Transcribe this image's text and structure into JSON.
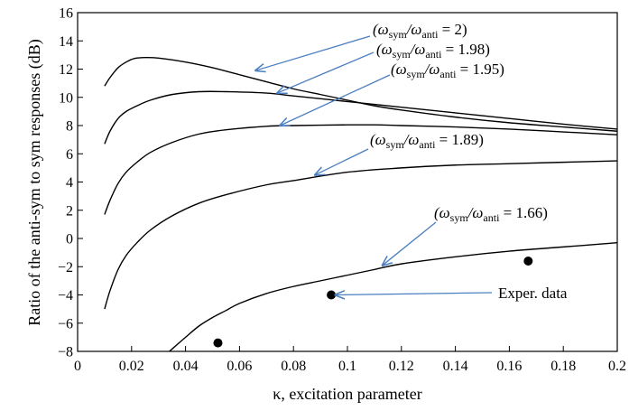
{
  "chart_data": {
    "type": "line",
    "title": "",
    "xlabel": "κ, excitation parameter",
    "ylabel": "Ratio of the anti-sym to sym responses (dB)",
    "xlim": [
      0,
      0.2
    ],
    "ylim": [
      -8,
      16
    ],
    "x_ticks": [
      "0",
      "0.02",
      "0.04",
      "0.06",
      "0.08",
      "0.1",
      "0.12",
      "0.14",
      "0.16",
      "0.18",
      "0.2"
    ],
    "y_ticks": [
      "16",
      "14",
      "12",
      "10",
      "8",
      "6",
      "4",
      "2",
      "0",
      "−2",
      "−4",
      "−6",
      "−8"
    ],
    "grid": false,
    "legend": "none",
    "series": [
      {
        "name": "(ωsym/ωanti = 2)",
        "color": "#000000",
        "points": [
          [
            0.01,
            10.8
          ],
          [
            0.012,
            11.4
          ],
          [
            0.015,
            12.1
          ],
          [
            0.018,
            12.5
          ],
          [
            0.021,
            12.75
          ],
          [
            0.025,
            12.82
          ],
          [
            0.03,
            12.78
          ],
          [
            0.04,
            12.5
          ],
          [
            0.05,
            12.1
          ],
          [
            0.06,
            11.6
          ],
          [
            0.07,
            11.1
          ],
          [
            0.08,
            10.6
          ],
          [
            0.09,
            10.2
          ],
          [
            0.1,
            9.8
          ],
          [
            0.11,
            9.4
          ],
          [
            0.12,
            9.1
          ],
          [
            0.14,
            8.6
          ],
          [
            0.16,
            8.2
          ],
          [
            0.18,
            7.9
          ],
          [
            0.2,
            7.6
          ]
        ]
      },
      {
        "name": "(ωsym/ωanti = 1.98)",
        "color": "#000000",
        "points": [
          [
            0.01,
            6.7
          ],
          [
            0.012,
            7.6
          ],
          [
            0.015,
            8.5
          ],
          [
            0.018,
            9.0
          ],
          [
            0.022,
            9.4
          ],
          [
            0.027,
            9.8
          ],
          [
            0.035,
            10.2
          ],
          [
            0.045,
            10.4
          ],
          [
            0.055,
            10.4
          ],
          [
            0.07,
            10.3
          ],
          [
            0.08,
            10.1
          ],
          [
            0.1,
            9.7
          ],
          [
            0.12,
            9.3
          ],
          [
            0.14,
            8.9
          ],
          [
            0.16,
            8.5
          ],
          [
            0.18,
            8.1
          ],
          [
            0.2,
            7.75
          ]
        ]
      },
      {
        "name": "(ωsym/ωanti = 1.95)",
        "color": "#000000",
        "points": [
          [
            0.01,
            1.7
          ],
          [
            0.012,
            2.7
          ],
          [
            0.015,
            3.9
          ],
          [
            0.018,
            4.7
          ],
          [
            0.022,
            5.4
          ],
          [
            0.027,
            6.1
          ],
          [
            0.035,
            6.8
          ],
          [
            0.045,
            7.4
          ],
          [
            0.055,
            7.7
          ],
          [
            0.07,
            7.95
          ],
          [
            0.08,
            8.0
          ],
          [
            0.1,
            8.05
          ],
          [
            0.11,
            8.05
          ],
          [
            0.12,
            8.0
          ],
          [
            0.14,
            7.9
          ],
          [
            0.16,
            7.75
          ],
          [
            0.18,
            7.55
          ],
          [
            0.2,
            7.35
          ]
        ]
      },
      {
        "name": "(ωsym/ωanti = 1.89)",
        "color": "#000000",
        "points": [
          [
            0.01,
            -5.0
          ],
          [
            0.012,
            -3.7
          ],
          [
            0.015,
            -2.2
          ],
          [
            0.018,
            -1.2
          ],
          [
            0.022,
            -0.3
          ],
          [
            0.027,
            0.6
          ],
          [
            0.035,
            1.6
          ],
          [
            0.045,
            2.5
          ],
          [
            0.055,
            3.1
          ],
          [
            0.07,
            3.8
          ],
          [
            0.08,
            4.1
          ],
          [
            0.1,
            4.7
          ],
          [
            0.12,
            5.0
          ],
          [
            0.14,
            5.2
          ],
          [
            0.16,
            5.3
          ],
          [
            0.18,
            5.4
          ],
          [
            0.2,
            5.5
          ]
        ]
      },
      {
        "name": "(ωsym/ωanti = 1.66)",
        "color": "#000000",
        "points": [
          [
            0.034,
            -8.0
          ],
          [
            0.04,
            -7.0
          ],
          [
            0.045,
            -6.2
          ],
          [
            0.05,
            -5.6
          ],
          [
            0.055,
            -5.1
          ],
          [
            0.06,
            -4.6
          ],
          [
            0.07,
            -3.9
          ],
          [
            0.08,
            -3.4
          ],
          [
            0.09,
            -3.0
          ],
          [
            0.1,
            -2.6
          ],
          [
            0.11,
            -2.2
          ],
          [
            0.12,
            -1.8
          ],
          [
            0.14,
            -1.3
          ],
          [
            0.16,
            -0.9
          ],
          [
            0.18,
            -0.6
          ],
          [
            0.2,
            -0.3
          ]
        ]
      }
    ],
    "exper_data": {
      "label": "Exper. data",
      "points": [
        [
          0.052,
          -7.4
        ],
        [
          0.094,
          -4.0
        ],
        [
          0.167,
          -1.6
        ]
      ]
    },
    "annotations": [
      {
        "series_index": 0,
        "base": "(ω",
        "sub1": "sym",
        "mid": "/ω",
        "sub2": "anti",
        "tail": " = 2)",
        "arrow_to": [
          0.066,
          11.9
        ],
        "arrow_from_label": true
      },
      {
        "series_index": 1,
        "base": "(ω",
        "sub1": "sym",
        "mid": "/ω",
        "sub2": "anti",
        "tail": " = 1.98)",
        "arrow_to": [
          0.074,
          10.3
        ]
      },
      {
        "series_index": 2,
        "base": "(ω",
        "sub1": "sym",
        "mid": "/ω",
        "sub2": "anti",
        "tail": " = 1.95)",
        "arrow_to": [
          0.075,
          8.0
        ]
      },
      {
        "series_index": 3,
        "base": "(ω",
        "sub1": "sym",
        "mid": "/ω",
        "sub2": "anti",
        "tail": " = 1.89)",
        "arrow_to": [
          0.088,
          4.5
        ]
      },
      {
        "series_index": 4,
        "base": "(ω",
        "sub1": "sym",
        "mid": "/ω",
        "sub2": "anti",
        "tail": " = 1.66)",
        "arrow_to": [
          0.113,
          -1.9
        ]
      }
    ],
    "arrow_color": "#4a7ec0"
  }
}
